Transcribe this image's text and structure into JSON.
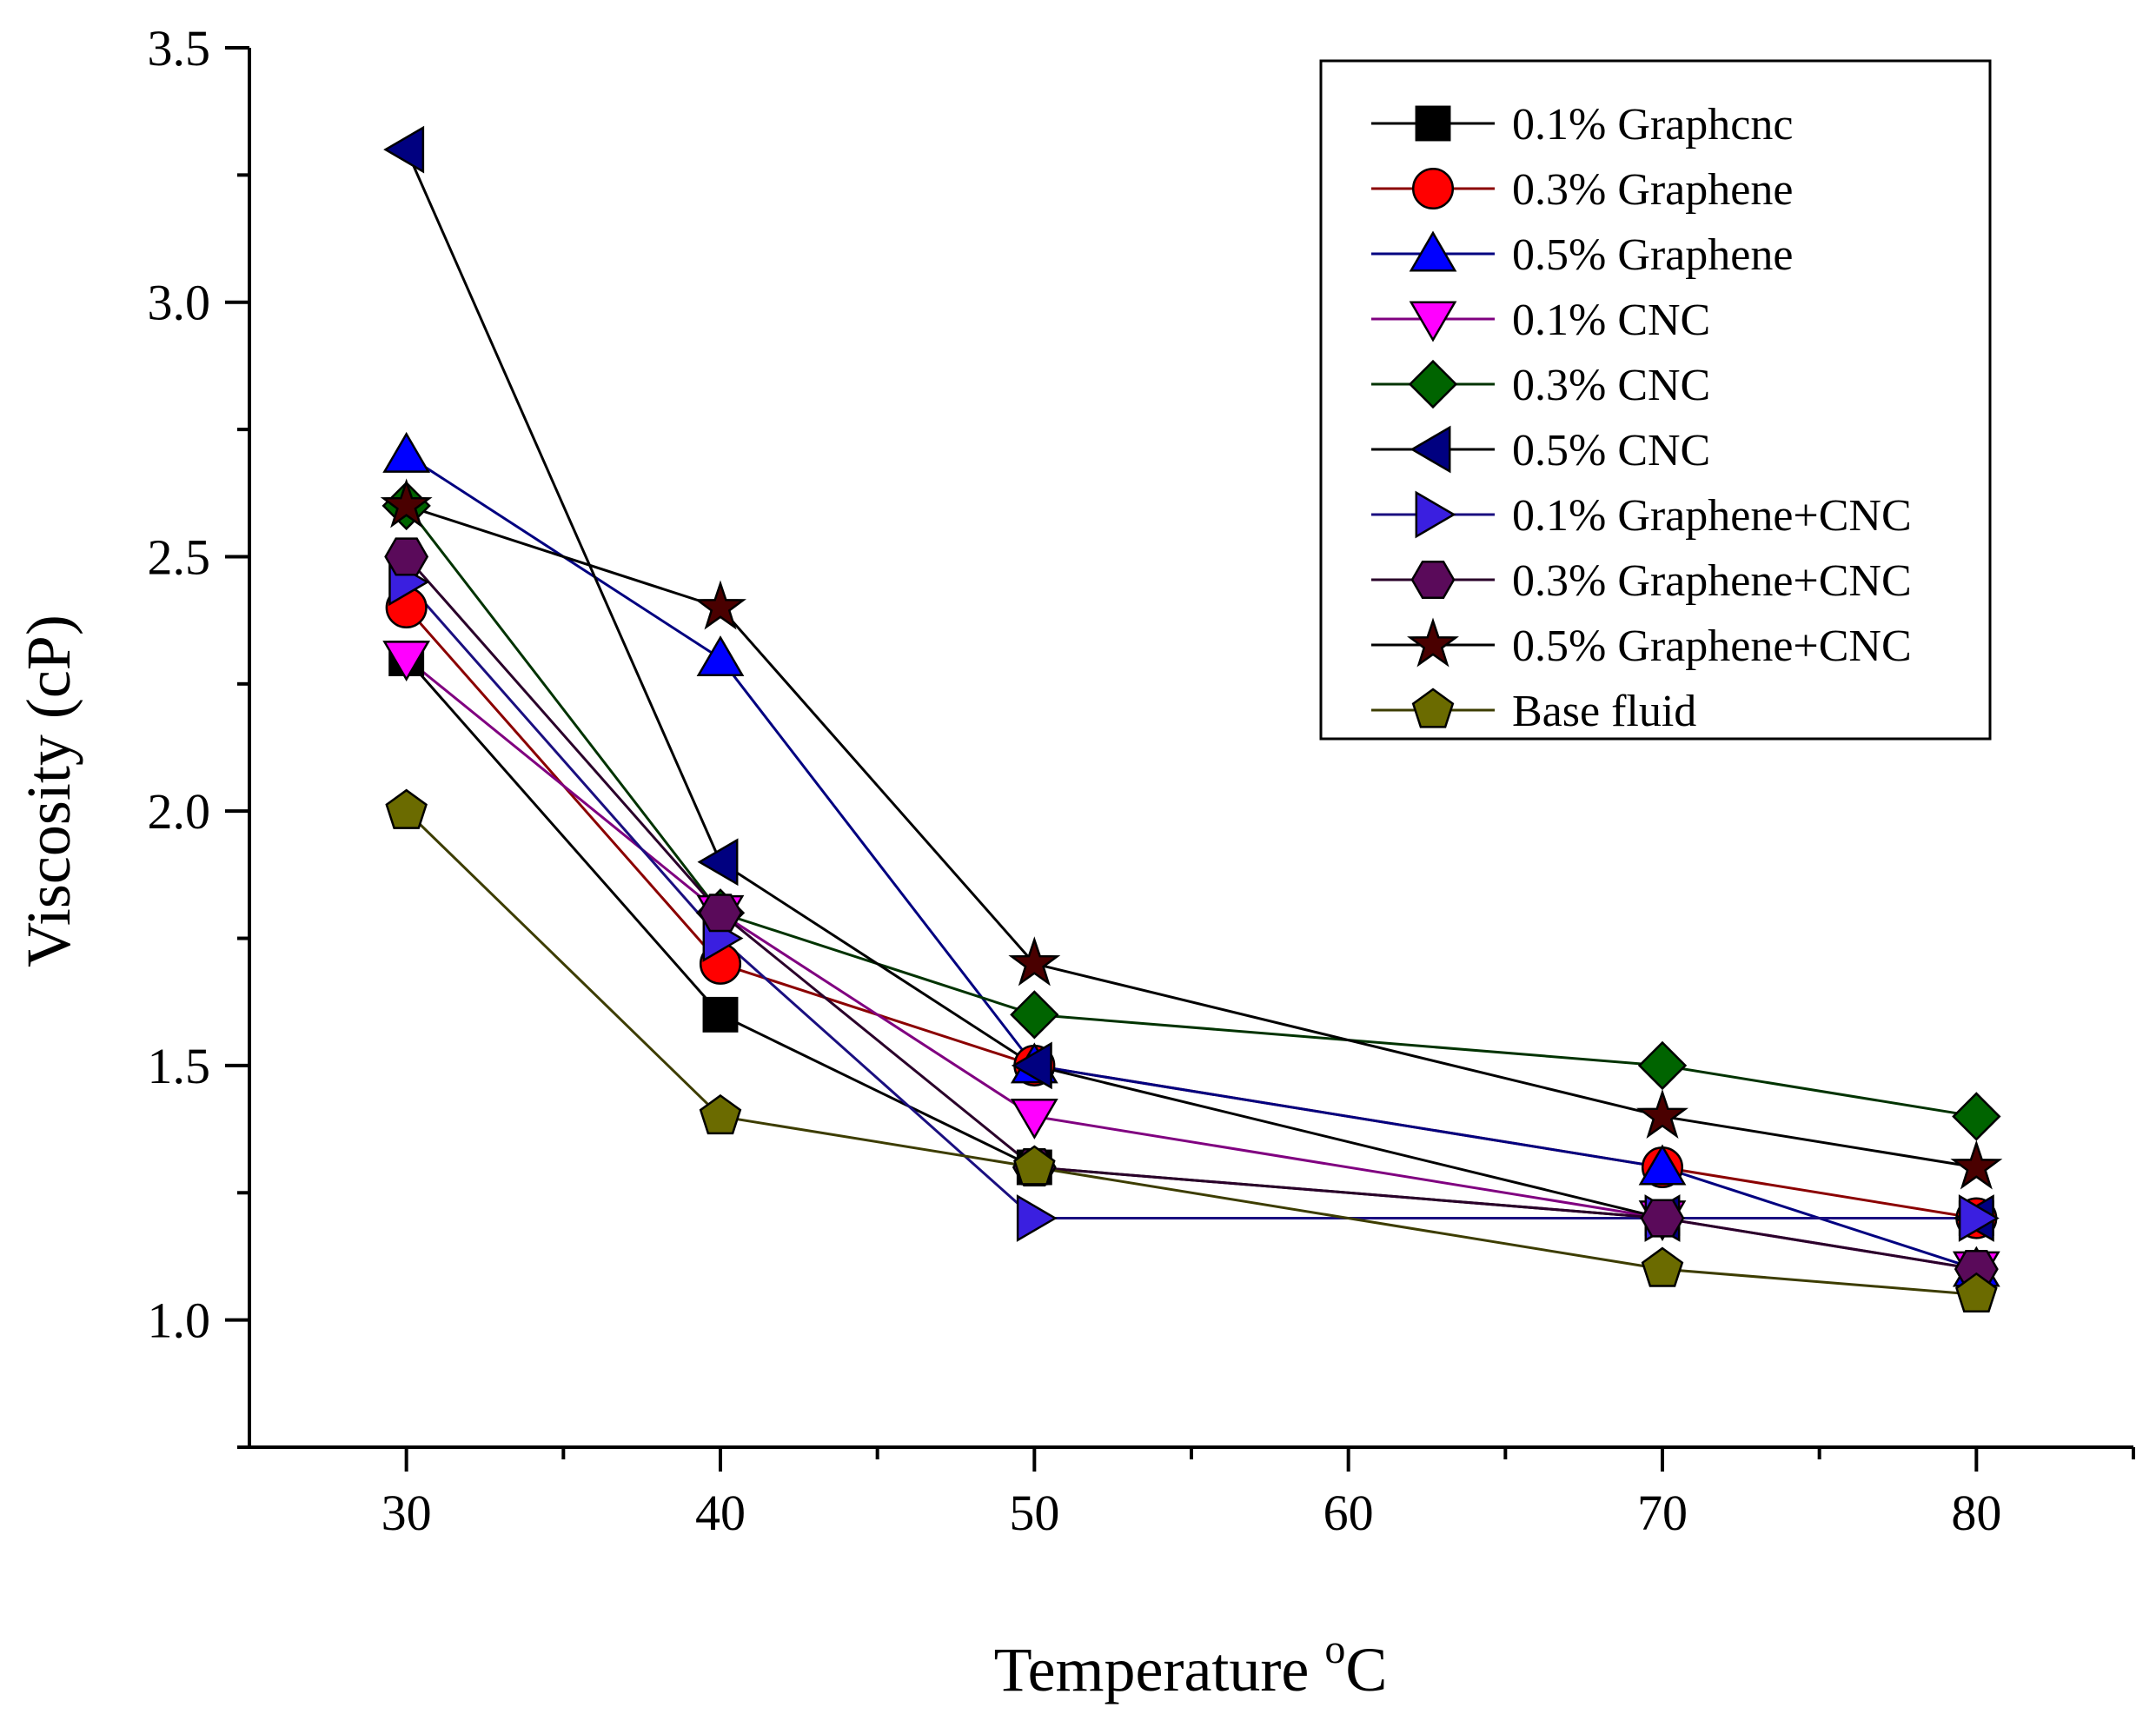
{
  "chart_data": {
    "type": "line",
    "title": "",
    "xlabel": "Temperature ",
    "xlabel_superscript": "o",
    "xlabel_unit": "C",
    "ylabel": "Viscosity (cP)",
    "xlim": [
      25,
      85
    ],
    "ylim": [
      0.75,
      3.5
    ],
    "x_ticks": [
      30,
      40,
      50,
      60,
      70,
      80
    ],
    "x_tick_labels": [
      "30",
      "40",
      "50",
      "60",
      "70",
      "80"
    ],
    "y_ticks": [
      1.0,
      1.5,
      2.0,
      2.5,
      3.0,
      3.5
    ],
    "y_tick_labels": [
      "1.0",
      "1.5",
      "2.0",
      "2.5",
      "3.0",
      "3.5"
    ],
    "grid": false,
    "legend_position": "top-right",
    "x": [
      30,
      40,
      50,
      70,
      80
    ],
    "series": [
      {
        "name": "0.1% Graphcnc",
        "marker": "square",
        "color": "#000000",
        "line_color": "#000000",
        "values": [
          2.3,
          1.6,
          1.3,
          1.2,
          1.2
        ]
      },
      {
        "name": "0.3% Graphene",
        "marker": "circle",
        "color": "#ff0000",
        "line_color": "#8b0000",
        "values": [
          2.4,
          1.7,
          1.5,
          1.3,
          1.2
        ]
      },
      {
        "name": "0.5% Graphene",
        "marker": "triangle-up",
        "color": "#0000ff",
        "line_color": "#000080",
        "values": [
          2.7,
          2.3,
          1.5,
          1.3,
          1.1
        ]
      },
      {
        "name": "0.1% CNC",
        "marker": "triangle-down",
        "color": "#ff00ff",
        "line_color": "#800080",
        "values": [
          2.3,
          1.8,
          1.4,
          1.2,
          1.1
        ]
      },
      {
        "name": "0.3% CNC",
        "marker": "diamond",
        "color": "#006400",
        "line_color": "#003300",
        "values": [
          2.6,
          1.8,
          1.6,
          1.5,
          1.4
        ]
      },
      {
        "name": "0.5% CNC",
        "marker": "triangle-left",
        "color": "#000080",
        "line_color": "#000000",
        "values": [
          3.3,
          1.9,
          1.5,
          1.2,
          1.2
        ]
      },
      {
        "name": "0.1% Graphene+CNC",
        "marker": "triangle-right",
        "color": "#3a1fe0",
        "line_color": "#1a0f80",
        "values": [
          2.45,
          1.75,
          1.2,
          1.2,
          1.2
        ]
      },
      {
        "name": "0.3% Graphene+CNC",
        "marker": "hexagon",
        "color": "#5a0a5a",
        "line_color": "#2a002a",
        "values": [
          2.5,
          1.8,
          1.3,
          1.2,
          1.1
        ]
      },
      {
        "name": "0.5% Graphene+CNC",
        "marker": "star",
        "color": "#4a0000",
        "line_color": "#000000",
        "values": [
          2.6,
          2.4,
          1.7,
          1.4,
          1.3
        ]
      },
      {
        "name": "Base fluid",
        "marker": "pentagon",
        "color": "#6b6b00",
        "line_color": "#3d3d00",
        "values": [
          2.0,
          1.4,
          1.3,
          1.1,
          1.05
        ]
      }
    ]
  }
}
